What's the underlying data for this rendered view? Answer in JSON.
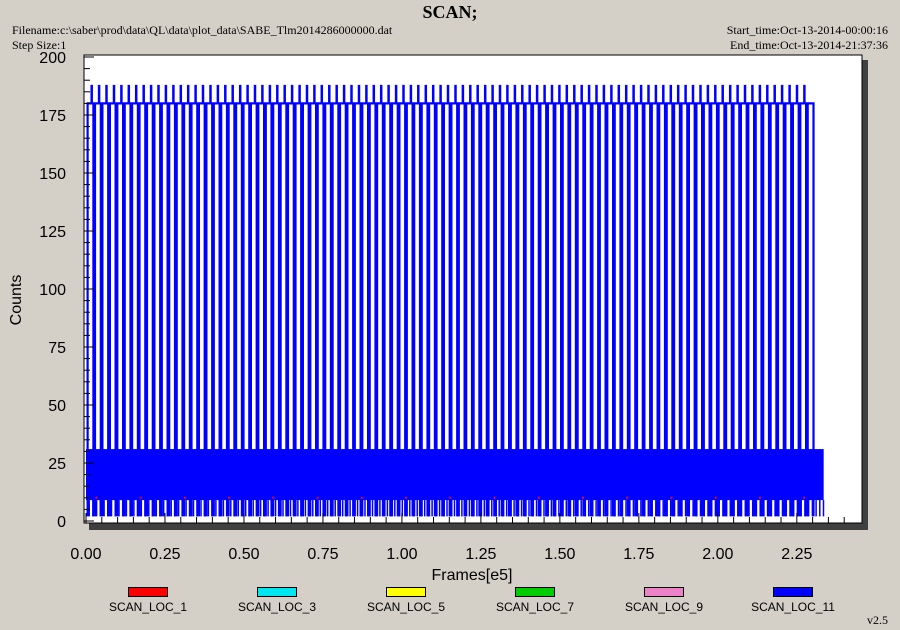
{
  "header": {
    "title": "SCAN;",
    "filename": "Filename:c:\\saber\\prod\\data\\QL\\data\\plot_data\\SABE_Tlm2014286000000.dat",
    "step_size": "Step Size:1",
    "start_time": "Start_time:Oct-13-2014-00:00:16",
    "end_time": "End_time:Oct-13-2014-21:37:36"
  },
  "version": "v2.5",
  "chart_data": {
    "type": "line",
    "title": "SCAN;",
    "xlabel": "Frames[e5]",
    "ylabel": "Counts",
    "xlim": [
      0,
      2.45
    ],
    "ylim": [
      0,
      200
    ],
    "x_ticks": [
      "0.00",
      "0.25",
      "0.50",
      "0.75",
      "1.00",
      "1.25",
      "1.50",
      "1.75",
      "2.00",
      "2.25"
    ],
    "x_tick_values": [
      0,
      0.25,
      0.5,
      0.75,
      1.0,
      1.25,
      1.5,
      1.75,
      2.0,
      2.25
    ],
    "y_ticks": [
      "0",
      "25",
      "50",
      "75",
      "100",
      "125",
      "150",
      "175",
      "200"
    ],
    "y_tick_values": [
      0,
      25,
      50,
      75,
      100,
      125,
      150,
      175,
      200
    ],
    "grid": false,
    "legend_position": "bottom",
    "series": [
      {
        "name": "SCAN_LOC_1",
        "color": "#ff0000",
        "visible_x_range": [
          0,
          2.32
        ],
        "typical_value": 10
      },
      {
        "name": "SCAN_LOC_3",
        "color": "#00e5ee",
        "visible_x_range": [
          0,
          2.32
        ],
        "typical_value": 10
      },
      {
        "name": "SCAN_LOC_5",
        "color": "#ffff00",
        "visible_x_range": [
          0,
          2.32
        ],
        "typical_value": 10
      },
      {
        "name": "SCAN_LOC_7",
        "color": "#00cc00",
        "visible_x_range": [
          0,
          2.32
        ],
        "typical_value": 10
      },
      {
        "name": "SCAN_LOC_9",
        "color": "#ee82c8",
        "visible_x_range": [
          0,
          2.32
        ],
        "typical_value": 10
      },
      {
        "name": "SCAN_LOC_11",
        "color": "#0000ff",
        "visible_x_range": [
          0,
          2.335
        ],
        "dense_band": [
          9,
          31
        ],
        "scan_top": 180,
        "spike_top": 188,
        "scan_low": 2,
        "scan_period_frames_e5": 0.0235,
        "spike_period_frames_e5": 0.0235
      }
    ]
  }
}
